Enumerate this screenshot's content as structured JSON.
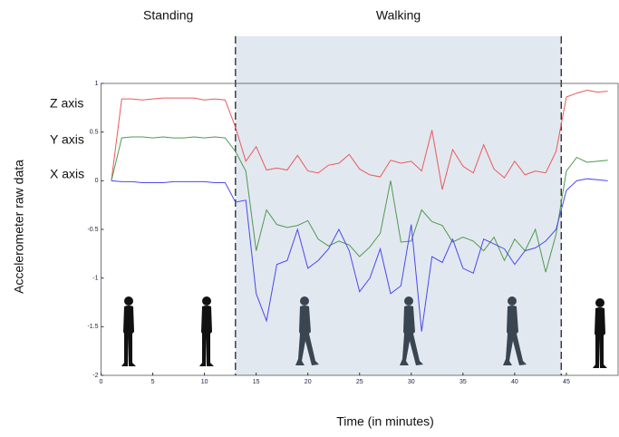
{
  "chart_data": {
    "type": "line",
    "xlabel": "Time (in minutes)",
    "ylabel": "Accelerometer raw data",
    "xlim": [
      0,
      50
    ],
    "ylim": [
      -2,
      1
    ],
    "xticks": [
      0,
      5,
      10,
      15,
      20,
      25,
      30,
      35,
      40,
      45
    ],
    "yticks": [
      1,
      0.5,
      0,
      -0.5,
      -1,
      -1.5,
      -2
    ],
    "regions": [
      {
        "label": "Standing",
        "x": [
          0,
          13
        ]
      },
      {
        "label": "Walking",
        "x": [
          13,
          44.5
        ],
        "shaded": true,
        "color": "#e2e8f0"
      }
    ],
    "x": [
      1,
      2,
      3,
      4,
      5,
      6,
      7,
      8,
      9,
      10,
      11,
      12,
      13,
      14,
      15,
      16,
      17,
      18,
      19,
      20,
      21,
      22,
      23,
      24,
      25,
      26,
      27,
      28,
      29,
      30,
      31,
      32,
      33,
      34,
      35,
      36,
      37,
      38,
      39,
      40,
      41,
      42,
      43,
      44,
      45,
      46,
      47,
      48,
      49
    ],
    "series": [
      {
        "name": "Z axis",
        "color": "#e85a5a",
        "values": [
          0.0,
          0.84,
          0.84,
          0.83,
          0.84,
          0.85,
          0.85,
          0.85,
          0.85,
          0.83,
          0.84,
          0.83,
          0.55,
          0.2,
          0.35,
          0.11,
          0.13,
          0.11,
          0.26,
          0.1,
          0.08,
          0.16,
          0.18,
          0.27,
          0.12,
          0.06,
          0.04,
          0.21,
          0.18,
          0.2,
          0.1,
          0.52,
          -0.09,
          0.32,
          0.15,
          0.08,
          0.37,
          0.12,
          0.03,
          0.2,
          0.06,
          0.1,
          0.08,
          0.3,
          0.86,
          0.9,
          0.93,
          0.91,
          0.92
        ]
      },
      {
        "name": "Y axis",
        "color": "#4f9a4f",
        "values": [
          0.0,
          0.44,
          0.45,
          0.45,
          0.44,
          0.45,
          0.44,
          0.44,
          0.45,
          0.44,
          0.45,
          0.44,
          0.3,
          0.1,
          -0.72,
          -0.3,
          -0.45,
          -0.48,
          -0.46,
          -0.41,
          -0.6,
          -0.67,
          -0.62,
          -0.66,
          -0.78,
          -0.68,
          -0.54,
          0.0,
          -0.63,
          -0.62,
          -0.3,
          -0.42,
          -0.46,
          -0.63,
          -0.58,
          -0.62,
          -0.72,
          -0.58,
          -0.82,
          -0.6,
          -0.72,
          -0.5,
          -0.94,
          -0.55,
          0.1,
          0.24,
          0.19,
          0.2,
          0.21
        ]
      },
      {
        "name": "X axis",
        "color": "#4a4ae8",
        "values": [
          0.0,
          -0.01,
          -0.01,
          -0.02,
          -0.02,
          -0.02,
          -0.01,
          -0.01,
          -0.01,
          -0.01,
          -0.02,
          -0.02,
          -0.22,
          -0.2,
          -1.16,
          -1.44,
          -0.86,
          -0.82,
          -0.5,
          -0.9,
          -0.82,
          -0.7,
          -0.5,
          -0.72,
          -1.14,
          -1.0,
          -0.7,
          -1.16,
          -1.08,
          -0.45,
          -1.55,
          -0.78,
          -0.84,
          -0.6,
          -0.9,
          -0.95,
          -0.6,
          -0.65,
          -0.7,
          -0.86,
          -0.72,
          -0.69,
          -0.62,
          -0.5,
          -0.1,
          0.0,
          0.02,
          0.01,
          0.0
        ]
      }
    ]
  }
}
